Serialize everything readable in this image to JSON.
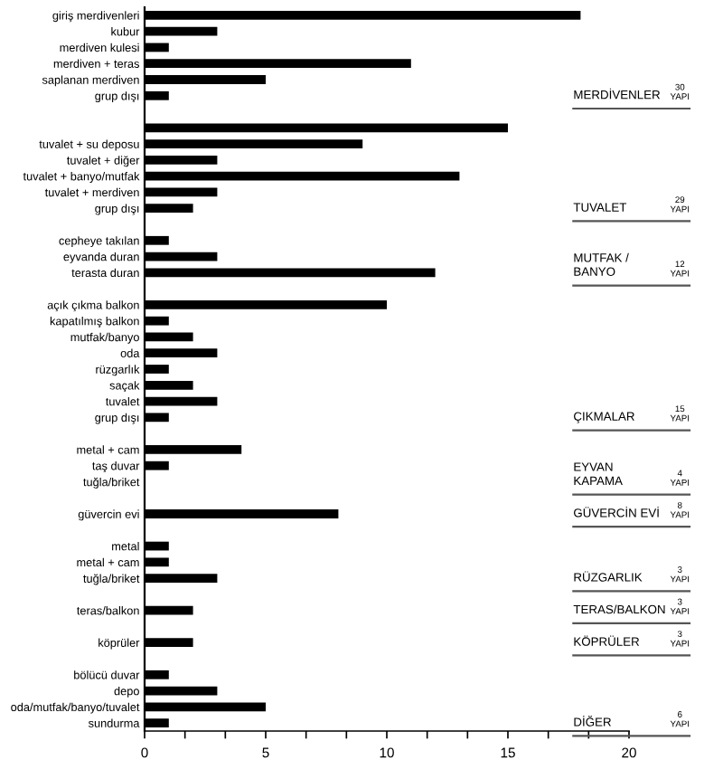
{
  "chart_data": {
    "type": "bar",
    "orientation": "horizontal",
    "categories": [
      "giriş merdivenleri",
      "kubur",
      "merdiven kulesi",
      "merdiven + teras",
      "saplanan merdiven",
      "grup dışı",
      null,
      null,
      "tuvalet + su deposu",
      "tuvalet + diğer",
      "tuvalet + banyo/mutfak",
      "tuvalet + merdiven",
      "grup dışı",
      null,
      "cepheye takılan",
      "eyvanda duran",
      "terasta duran",
      null,
      "açık çıkma balkon",
      "kapatılmış balkon",
      "mutfak/banyo",
      "oda",
      "rüzgarlık",
      "saçak",
      "tuvalet",
      "grup dışı",
      null,
      "metal + cam",
      "taş duvar",
      "tuğla/briket",
      null,
      "güvercin evi",
      null,
      "metal",
      "metal + cam",
      "tuğla/briket",
      null,
      "teras/balkon",
      null,
      "köprüler",
      null,
      "bölücü duvar",
      "depo",
      "oda/mutfak/banyo/tuvalet",
      "sundurma"
    ],
    "values": [
      18,
      3,
      1,
      11,
      5,
      1,
      null,
      15,
      9,
      3,
      13,
      3,
      2,
      null,
      1,
      3,
      12,
      null,
      10,
      1,
      2,
      3,
      1,
      2,
      3,
      1,
      null,
      4,
      1,
      0,
      null,
      8,
      null,
      1,
      1,
      3,
      null,
      2,
      null,
      2,
      null,
      1,
      3,
      5,
      1
    ],
    "color": "#000000",
    "xlim": [
      0,
      20
    ],
    "xticks": [
      0,
      {
        "value": 1.667,
        "label": null
      },
      {
        "value": 3.333,
        "label": null
      },
      5,
      {
        "value": 6.667,
        "label": null
      },
      {
        "value": 8.333,
        "label": null
      },
      10,
      {
        "value": 11.667,
        "label": null
      },
      {
        "value": 13.333,
        "label": null
      },
      15,
      {
        "value": 16.667,
        "label": null
      },
      {
        "value": 18.333,
        "label": null
      },
      20
    ],
    "annotations": [
      "MERDİVENLER",
      "30\nYAPI",
      "TUVALET",
      "29\nYAPI",
      "MUTFAK /\nBANYO",
      "12\nYAPI",
      "ÇIKMALAR",
      "15\nYAPI",
      "EYVAN\nKAPAMA",
      "4\nYAPI",
      "GÜVERCİN EVİ",
      "8\nYAPI",
      "RÜZGARLIK",
      "3\nYAPI",
      "TERAS/BALKON",
      "3\nYAPI",
      "KÖPRÜLER",
      "3\nYAPI",
      "DİĞER",
      "6\nYAPI"
    ],
    "grid": false,
    "legend": false
  }
}
